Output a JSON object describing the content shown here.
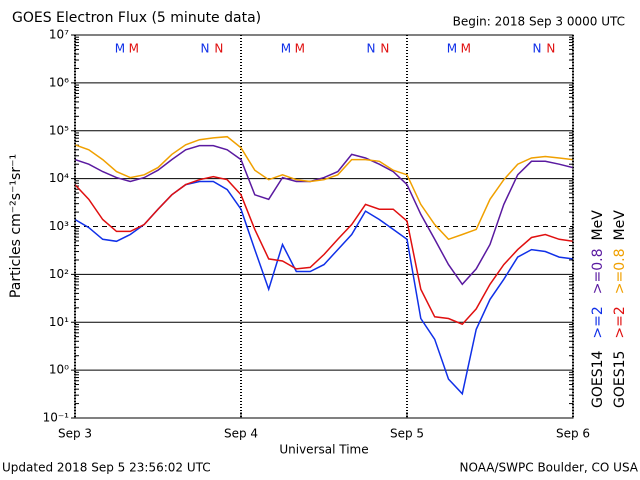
{
  "chart_data": {
    "type": "line",
    "title": "GOES Electron Flux (5 minute data)",
    "begin_label": "Begin: 2018 Sep 3 0000 UTC",
    "footer_left": "Updated 2018 Sep  5 23:56:02 UTC",
    "footer_right": "NOAA/SWPC Boulder, CO USA",
    "xlabel": "Universal Time",
    "ylabel": "Particles cm⁻²s⁻¹sr⁻¹",
    "log_y": true,
    "grid": true,
    "dashed_gridline": 1000,
    "xlim": [
      0,
      72
    ],
    "xticks": [
      {
        "value": 0,
        "label": "Sep 3"
      },
      {
        "value": 24,
        "label": "Sep 4"
      },
      {
        "value": 48,
        "label": "Sep 5"
      },
      {
        "value": 72,
        "label": "Sep 6"
      }
    ],
    "ylim": [
      0.1,
      10000000
    ],
    "yticks": [
      {
        "value": 0.1,
        "label": "10⁻¹"
      },
      {
        "value": 1,
        "label": "10⁰"
      },
      {
        "value": 10,
        "label": "10¹"
      },
      {
        "value": 100,
        "label": "10²"
      },
      {
        "value": 1000,
        "label": "10³"
      },
      {
        "value": 10000,
        "label": "10⁴"
      },
      {
        "value": 100000,
        "label": "10⁵"
      },
      {
        "value": 1000000,
        "label": "10⁶"
      },
      {
        "value": 10000000,
        "label": "10⁷"
      }
    ],
    "legend_unit": "MeV",
    "x": [
      0,
      2,
      4,
      6,
      8,
      10,
      12,
      14,
      16,
      18,
      20,
      22,
      24,
      26,
      28,
      30,
      32,
      34,
      36,
      38,
      40,
      42,
      44,
      46,
      48,
      50,
      52,
      54,
      56,
      58,
      60,
      62,
      64,
      66,
      68,
      70,
      72
    ],
    "series": [
      {
        "name": ">=2",
        "satellite": "GOES14",
        "color": "#1030e8",
        "values": [
          1400,
          950,
          540,
          490,
          680,
          1100,
          2300,
          4600,
          7500,
          8700,
          8700,
          5900,
          2300,
          330,
          49,
          420,
          115,
          115,
          160,
          330,
          680,
          2100,
          1400,
          870,
          540,
          12,
          4.4,
          0.65,
          0.32,
          7.1,
          30,
          79,
          230,
          330,
          300,
          230,
          210
        ]
      },
      {
        "name": ">=0.8",
        "satellite": "GOES14",
        "color": "#5a1aa0",
        "values": [
          25000,
          20000,
          14000,
          10500,
          8700,
          10500,
          15000,
          25000,
          40000,
          49000,
          49000,
          40000,
          25000,
          4600,
          3700,
          10500,
          8700,
          8700,
          10500,
          14000,
          32000,
          27000,
          20000,
          14000,
          7500,
          1800,
          540,
          160,
          62,
          130,
          420,
          2900,
          12000,
          23000,
          23000,
          20000,
          17000
        ]
      },
      {
        "name": ">=2",
        "satellite": "GOES15",
        "color": "#e01010",
        "values": [
          7500,
          3700,
          1400,
          790,
          790,
          1100,
          2300,
          4600,
          7500,
          9500,
          11000,
          9500,
          4600,
          870,
          210,
          190,
          130,
          140,
          260,
          540,
          1100,
          2900,
          2300,
          2300,
          1300,
          49,
          13,
          12,
          9.1,
          19,
          62,
          160,
          330,
          590,
          680,
          540,
          490
        ]
      },
      {
        "name": ">=0.8",
        "satellite": "GOES15",
        "color": "#f0a000",
        "values": [
          51000,
          40000,
          25000,
          14000,
          10500,
          12000,
          17000,
          32000,
          51000,
          65000,
          71000,
          75000,
          44000,
          15000,
          9500,
          12000,
          9500,
          8700,
          9500,
          12000,
          25000,
          25000,
          23000,
          15000,
          12000,
          2900,
          1100,
          540,
          680,
          870,
          3700,
          9500,
          20000,
          27000,
          29000,
          27000,
          25000
        ]
      }
    ],
    "markers": [
      {
        "label": "M",
        "x": 6.5,
        "color": "#1030e8"
      },
      {
        "label": "M",
        "x": 8.5,
        "color": "#e01010"
      },
      {
        "label": "N",
        "x": 18.8,
        "color": "#1030e8"
      },
      {
        "label": "N",
        "x": 20.8,
        "color": "#e01010"
      },
      {
        "label": "M",
        "x": 30.5,
        "color": "#1030e8"
      },
      {
        "label": "M",
        "x": 32.5,
        "color": "#e01010"
      },
      {
        "label": "N",
        "x": 42.8,
        "color": "#1030e8"
      },
      {
        "label": "N",
        "x": 44.8,
        "color": "#e01010"
      },
      {
        "label": "M",
        "x": 54.5,
        "color": "#1030e8"
      },
      {
        "label": "M",
        "x": 56.5,
        "color": "#e01010"
      },
      {
        "label": "N",
        "x": 66.8,
        "color": "#1030e8"
      },
      {
        "label": "N",
        "x": 68.8,
        "color": "#e01010"
      }
    ]
  }
}
